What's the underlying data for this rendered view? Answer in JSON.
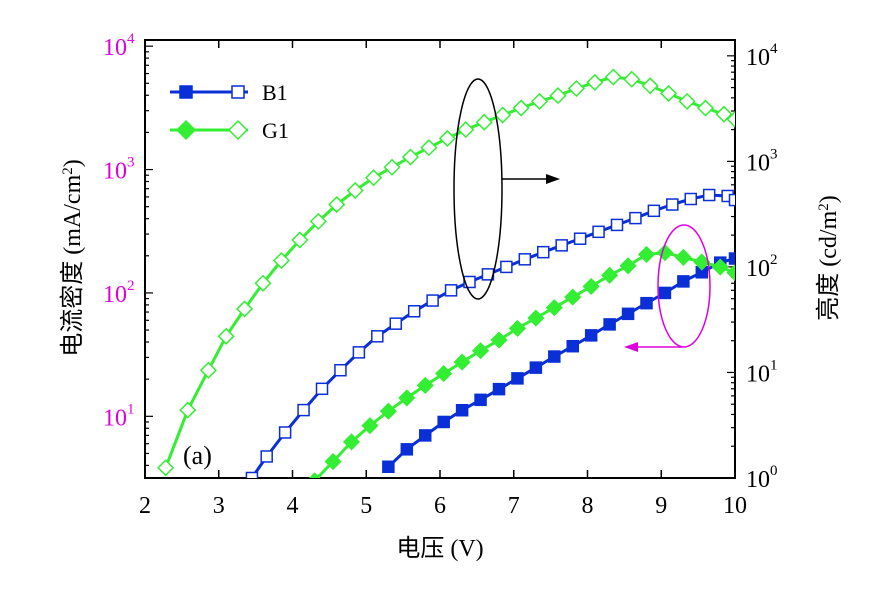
{
  "chart_data": {
    "type": "line",
    "panel_label": "(a)",
    "xlabel": "电压 (V)",
    "ylabel_left": "电流密度 (mA/cm",
    "ylabel_left_sup": "2",
    "ylabel_left_close": ")",
    "ylabel_right": "亮度 (cd/m",
    "ylabel_right_sup": "2",
    "ylabel_right_close": ")",
    "xlim": [
      2,
      10
    ],
    "ylim_left_log10": [
      0.5,
      4.05
    ],
    "ylim_right_log10": [
      0,
      4.15
    ],
    "x_ticks": [
      2,
      3,
      4,
      5,
      6,
      7,
      8,
      9,
      10
    ],
    "y_left_ticks": [
      {
        "base": "10",
        "exp": "1",
        "value": 10
      },
      {
        "base": "10",
        "exp": "2",
        "value": 100
      },
      {
        "base": "10",
        "exp": "3",
        "value": 1000
      },
      {
        "base": "10",
        "exp": "4",
        "value": 10000
      }
    ],
    "y_right_ticks": [
      {
        "base": "10",
        "exp": "0",
        "value": 1
      },
      {
        "base": "10",
        "exp": "1",
        "value": 10
      },
      {
        "base": "10",
        "exp": "2",
        "value": 100
      },
      {
        "base": "10",
        "exp": "3",
        "value": 1000
      },
      {
        "base": "10",
        "exp": "4",
        "value": 10000
      }
    ],
    "colors": {
      "B1": "#0a2fd6",
      "G1": "#33ee33",
      "left_axis": "#dd00dd",
      "arrow_right": "#000000",
      "arrow_left": "#dd00dd"
    },
    "series": [
      {
        "name": "B1",
        "legend": "B1",
        "kind": "current_density",
        "axis": "left",
        "marker": "square-filled",
        "color": "#0a2fd6",
        "x": [
          5.3,
          5.55,
          5.8,
          6.05,
          6.3,
          6.55,
          6.8,
          7.05,
          7.3,
          7.55,
          7.8,
          8.05,
          8.3,
          8.55,
          8.8,
          9.05,
          9.3,
          9.55,
          9.8,
          10.0
        ],
        "y": [
          3.9,
          5.4,
          7.0,
          9.0,
          11.2,
          13.6,
          16.6,
          20.3,
          24.8,
          30.5,
          37.0,
          45.3,
          55.6,
          67.7,
          82.6,
          100,
          124,
          147,
          176,
          190
        ]
      },
      {
        "name": "B1",
        "legend": "B1",
        "kind": "luminance",
        "axis": "right",
        "marker": "square-open",
        "color": "#0a2fd6",
        "x": [
          3.45,
          3.65,
          3.9,
          4.15,
          4.4,
          4.65,
          4.9,
          5.15,
          5.4,
          5.65,
          5.9,
          6.15,
          6.4,
          6.65,
          6.9,
          7.15,
          7.4,
          7.65,
          7.9,
          8.15,
          8.4,
          8.65,
          8.9,
          9.15,
          9.4,
          9.65,
          9.9,
          10.0
        ],
        "y": [
          1.0,
          1.6,
          2.7,
          4.4,
          7.0,
          10.5,
          15.5,
          22,
          29,
          38,
          48,
          60,
          72,
          85,
          100,
          118,
          138,
          160,
          185,
          215,
          250,
          290,
          340,
          390,
          440,
          480,
          470,
          430
        ]
      },
      {
        "name": "G1",
        "legend": "G1",
        "kind": "current_density",
        "axis": "left",
        "marker": "diamond-filled",
        "color": "#33ee33",
        "x": [
          4.3,
          4.55,
          4.8,
          5.05,
          5.3,
          5.55,
          5.8,
          6.05,
          6.3,
          6.55,
          6.8,
          7.05,
          7.3,
          7.55,
          7.8,
          8.05,
          8.3,
          8.55,
          8.8,
          9.05,
          9.3,
          9.55,
          9.8,
          10.0
        ],
        "y": [
          3.0,
          4.3,
          6.2,
          8.4,
          11.0,
          14.1,
          17.8,
          22.2,
          27.5,
          34.0,
          41.5,
          51.6,
          62.6,
          76.0,
          92.5,
          113,
          139,
          166,
          205,
          212,
          194,
          178,
          162,
          146
        ]
      },
      {
        "name": "G1",
        "legend": "G1",
        "kind": "luminance",
        "axis": "right",
        "marker": "diamond-open",
        "color": "#33ee33",
        "x": [
          2.28,
          2.58,
          2.86,
          3.1,
          3.35,
          3.6,
          3.85,
          4.1,
          4.35,
          4.6,
          4.85,
          5.1,
          5.35,
          5.6,
          5.85,
          6.1,
          6.35,
          6.6,
          6.85,
          7.1,
          7.35,
          7.6,
          7.85,
          8.1,
          8.35,
          8.6,
          8.85,
          9.1,
          9.35,
          9.6,
          9.85,
          10.0
        ],
        "y": [
          1.25,
          4.4,
          10.5,
          22,
          40,
          70,
          115,
          180,
          270,
          390,
          530,
          700,
          880,
          1100,
          1350,
          1650,
          2000,
          2350,
          2750,
          3200,
          3700,
          4200,
          4900,
          5600,
          6300,
          6000,
          5200,
          4400,
          3700,
          3200,
          2800,
          2500
        ]
      }
    ],
    "annotations": [
      {
        "type": "ellipse-arrow",
        "target": "right-axis",
        "color": "#000000"
      },
      {
        "type": "ellipse-arrow",
        "target": "left-axis",
        "color": "#dd00dd"
      }
    ]
  }
}
